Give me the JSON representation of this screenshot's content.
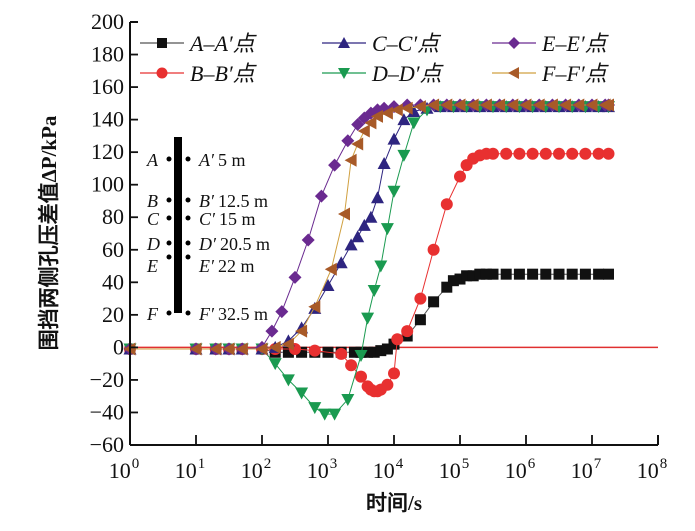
{
  "chart_data": {
    "type": "line",
    "title": "",
    "xlabel": "时间/s",
    "ylabel": "围挡两侧孔压差值ΔP/kPa",
    "xscale": "log",
    "xlim_log10": [
      0,
      8
    ],
    "ylim": [
      -60,
      200
    ],
    "xticks": [
      "10^0",
      "10^1",
      "10^2",
      "10^3",
      "10^4",
      "10^5",
      "10^6",
      "10^7",
      "10^8"
    ],
    "xtick_exponents": [
      "0",
      "1",
      "2",
      "3",
      "4",
      "5",
      "6",
      "7",
      "8"
    ],
    "xtick_base": "10",
    "yticks": [
      -60,
      -40,
      -20,
      0,
      20,
      40,
      60,
      80,
      100,
      120,
      140,
      160,
      180,
      200
    ],
    "grid": false,
    "legend_position": "top",
    "zero_line_color": "#e03030",
    "series": [
      {
        "name": "A–A′点",
        "color": "#111111",
        "line_color": "#555555",
        "marker": "square",
        "log10_x": [
          0,
          1,
          1.3,
          1.5,
          1.7,
          2,
          2.2,
          2.4,
          2.6,
          2.8,
          3,
          3.2,
          3.4,
          3.5,
          3.6,
          3.7,
          3.8,
          3.9,
          4,
          4.2,
          4.4,
          4.6,
          4.8,
          4.9,
          5,
          5.1,
          5.2,
          5.3,
          5.4,
          5.5,
          5.7,
          5.9,
          6.1,
          6.3,
          6.5,
          6.7,
          6.9,
          7.1,
          7.25
        ],
        "values": [
          -1,
          -1,
          -1,
          -1,
          -1,
          -1,
          -3,
          -3,
          -3,
          -3,
          -3,
          -3,
          -3,
          -3,
          -3,
          -3,
          -2,
          -1,
          2,
          7,
          17,
          28,
          37,
          41,
          42,
          44,
          44,
          45,
          45,
          45,
          45,
          45,
          45,
          45,
          45,
          45,
          45,
          45,
          45
        ]
      },
      {
        "name": "B–B′点",
        "color": "#e83030",
        "line_color": "#e83030",
        "marker": "circle",
        "log10_x": [
          0,
          1,
          1.3,
          1.5,
          1.7,
          2,
          2.2,
          2.5,
          2.8,
          3.2,
          3.35,
          3.5,
          3.6,
          3.65,
          3.7,
          3.75,
          3.8,
          3.9,
          4,
          4.05,
          4.2,
          4.4,
          4.6,
          4.8,
          5,
          5.1,
          5.2,
          5.3,
          5.4,
          5.5,
          5.7,
          5.9,
          6.1,
          6.3,
          6.5,
          6.7,
          6.9,
          7.1,
          7.25
        ],
        "values": [
          -1,
          -1,
          -1,
          -1,
          -1,
          -1,
          -1,
          -1,
          -2,
          -4,
          -11,
          -18,
          -24,
          -26,
          -27,
          -27,
          -26,
          -23,
          -16,
          5,
          10,
          30,
          60,
          88,
          105,
          112,
          116,
          118,
          119,
          119,
          119,
          119,
          119,
          119,
          119,
          119,
          119,
          119,
          119
        ]
      },
      {
        "name": "C–C′点",
        "color": "#2e2580",
        "line_color": "#2e2580",
        "marker": "triangle-up",
        "log10_x": [
          0,
          1,
          1.3,
          1.5,
          1.7,
          2,
          2.2,
          2.4,
          2.6,
          2.8,
          3,
          3.2,
          3.35,
          3.45,
          3.55,
          3.65,
          3.75,
          3.85,
          4,
          4.15,
          4.3,
          4.5,
          4.7,
          4.9,
          5.1,
          5.3,
          5.5,
          5.7,
          5.9,
          6.1,
          6.3,
          6.5,
          6.7,
          6.9,
          7.1,
          7.25
        ],
        "values": [
          -1,
          -1,
          -1,
          -1,
          -1,
          -1,
          0,
          4,
          12,
          24,
          38,
          52,
          63,
          68,
          75,
          80,
          92,
          113,
          128,
          140,
          145,
          147,
          148,
          148,
          148,
          148,
          148,
          148,
          148,
          148,
          148,
          148,
          148,
          148,
          148,
          148
        ]
      },
      {
        "name": "D–D′点",
        "color": "#1a9a50",
        "line_color": "#1a9a50",
        "marker": "triangle-down",
        "log10_x": [
          0,
          1,
          1.3,
          1.5,
          1.7,
          2,
          2.2,
          2.4,
          2.6,
          2.8,
          2.95,
          3.1,
          3.3,
          3.5,
          3.6,
          3.7,
          3.8,
          3.9,
          4,
          4.15,
          4.3,
          4.5,
          4.7,
          4.9,
          5.1,
          5.3,
          5.5,
          5.7,
          5.9,
          6.1,
          6.3,
          6.5,
          6.7,
          6.9,
          7.1,
          7.25
        ],
        "values": [
          -1,
          -1,
          -1,
          -1,
          -1,
          -1,
          -10,
          -20,
          -28,
          -37,
          -41,
          -41,
          -32,
          -5,
          18,
          35,
          50,
          73,
          96,
          118,
          138,
          146,
          148,
          148,
          148,
          148,
          148,
          148,
          148,
          148,
          148,
          148,
          148,
          148,
          148,
          148
        ]
      },
      {
        "name": "E–E′点",
        "color": "#6a2a90",
        "line_color": "#6a2a90",
        "marker": "diamond",
        "log10_x": [
          0,
          1,
          1.3,
          1.5,
          1.7,
          2,
          2.15,
          2.3,
          2.5,
          2.7,
          2.9,
          3.1,
          3.3,
          3.45,
          3.55,
          3.65,
          3.75,
          3.85,
          4,
          4.2,
          4.4,
          4.6,
          4.8,
          5,
          5.2,
          5.4,
          5.6,
          5.8,
          6,
          6.2,
          6.4,
          6.6,
          6.8,
          7,
          7.2,
          7.25
        ],
        "values": [
          -1,
          -1,
          -1,
          -1,
          -1,
          0,
          10,
          22,
          43,
          66,
          93,
          112,
          127,
          137,
          141,
          144,
          146,
          147,
          148,
          149,
          149,
          149,
          149,
          149,
          149,
          149,
          149,
          149,
          149,
          149,
          149,
          149,
          149,
          149,
          149,
          149
        ]
      },
      {
        "name": "F–F′点",
        "color": "#a85a28",
        "line_color": "#d0a040",
        "marker": "triangle-left",
        "log10_x": [
          0,
          1,
          1.3,
          1.5,
          1.7,
          2,
          2.2,
          2.4,
          2.6,
          2.8,
          3.05,
          3.25,
          3.35,
          3.45,
          3.55,
          3.65,
          3.75,
          3.9,
          4.05,
          4.2,
          4.4,
          4.6,
          4.8,
          5,
          5.2,
          5.4,
          5.6,
          5.8,
          6,
          6.2,
          6.4,
          6.6,
          6.8,
          7,
          7.2,
          7.25
        ],
        "values": [
          -1,
          -1,
          -1,
          -1,
          -1,
          -1,
          0,
          2,
          10,
          25,
          48,
          82,
          115,
          125,
          133,
          138,
          142,
          144,
          146,
          147,
          148,
          149,
          149,
          149,
          149,
          149,
          149,
          149,
          149,
          149,
          149,
          149,
          149,
          149,
          149,
          149
        ]
      }
    ],
    "annotations": {
      "inset_left_labels": [
        "A",
        "B",
        "C",
        "D",
        "E",
        "F"
      ],
      "inset_right_labels": [
        "A′",
        "B′",
        "C′",
        "D′",
        "E′",
        "F′"
      ],
      "inset_depths": [
        "5 m",
        "12.5 m",
        "15 m",
        "20.5 m",
        "22 m",
        "32.5 m"
      ],
      "inset_depth_values_m": [
        5,
        12.5,
        15,
        20.5,
        22,
        32.5
      ]
    }
  }
}
